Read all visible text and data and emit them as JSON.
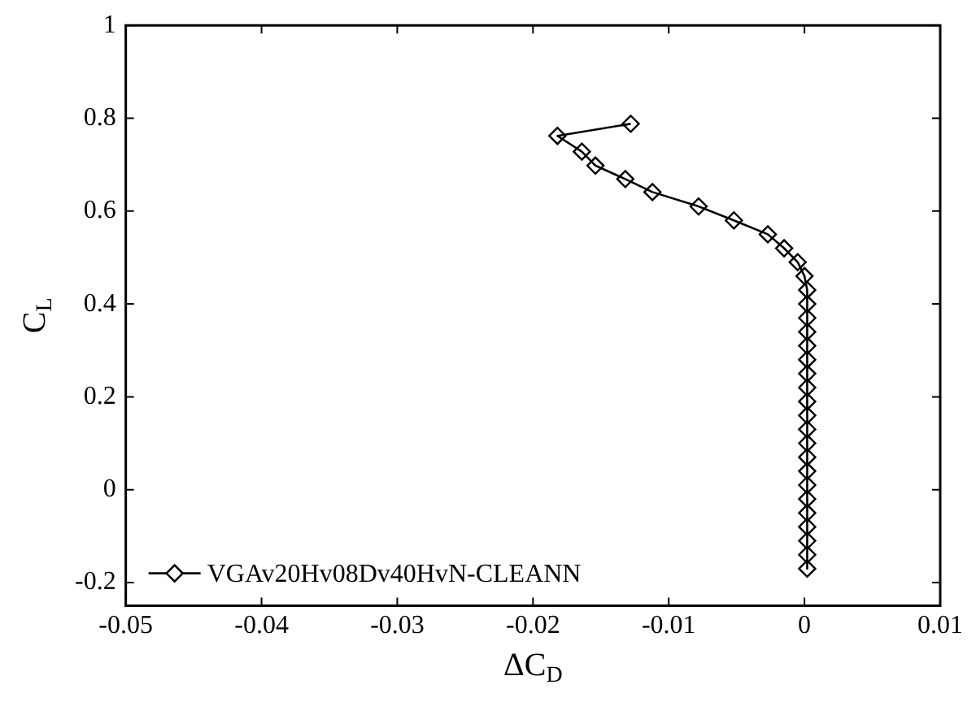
{
  "chart_data": {
    "type": "line",
    "xlabel": "ΔC$_{D}$",
    "ylabel": "C$_{L}$",
    "xlim": [
      -0.05,
      0.01
    ],
    "xticks": [
      -0.05,
      -0.04,
      -0.03,
      -0.02,
      -0.01,
      0,
      0.01
    ],
    "ylim": [
      -0.25,
      1
    ],
    "yticks": [
      -0.2,
      0,
      0.2,
      0.4,
      0.6,
      0.8,
      1
    ],
    "grid": false,
    "legend": "bottom left",
    "marker": "diamond",
    "line_style": "solid",
    "series": [
      {
        "name": "VGAv20Hv08Dv40HvN-CLEANN",
        "color": "#000000",
        "x": [
          -0.0128,
          -0.0182,
          -0.0164,
          -0.0154,
          -0.0132,
          -0.0112,
          -0.0078,
          -0.0052,
          -0.0027,
          -0.0015,
          -0.0005,
          0.0,
          0.0002,
          0.0002,
          0.0002,
          0.0002,
          0.0002,
          0.0002,
          0.0002,
          0.0002,
          0.0002,
          0.0002,
          0.0002,
          0.0002,
          0.0002,
          0.0002,
          0.0002,
          0.0002,
          0.0002,
          0.0002,
          0.0002,
          0.0002,
          0.0002
        ],
        "values": [
          0.788,
          0.762,
          0.728,
          0.698,
          0.669,
          0.641,
          0.61,
          0.58,
          0.55,
          0.52,
          0.49,
          0.46,
          0.43,
          0.4,
          0.37,
          0.34,
          0.31,
          0.28,
          0.25,
          0.22,
          0.19,
          0.16,
          0.13,
          0.1,
          0.07,
          0.04,
          0.01,
          -0.02,
          -0.05,
          -0.08,
          -0.11,
          -0.14,
          -0.17
        ]
      }
    ]
  }
}
